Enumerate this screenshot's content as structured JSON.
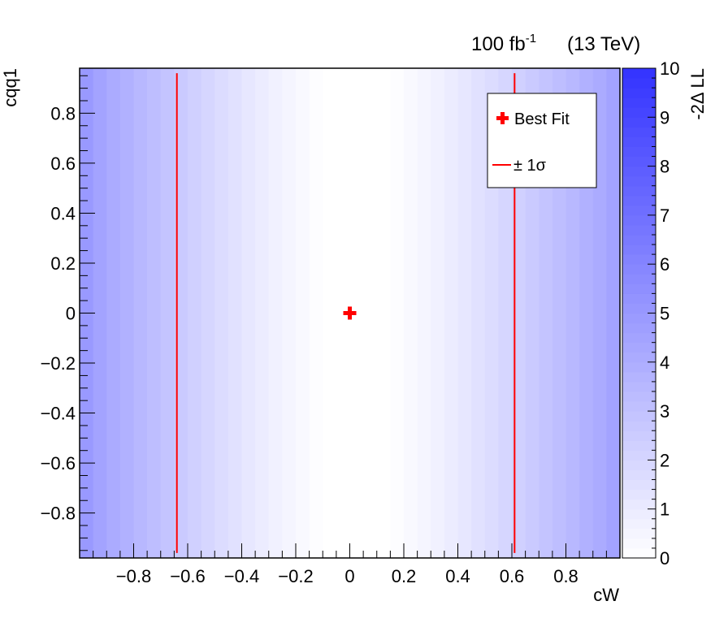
{
  "chart_data": {
    "type": "heatmap",
    "title": "",
    "header_left": "100 fb",
    "header_left_sup": "-1",
    "header_right": "(13 TeV)",
    "xlabel": "cW",
    "ylabel": "cqq1",
    "xlim": [
      -1.0,
      1.0
    ],
    "ylim": [
      -0.98,
      0.98
    ],
    "x_ticks": [
      {
        "value": -0.8,
        "label": "−0.8"
      },
      {
        "value": -0.6,
        "label": "−0.6"
      },
      {
        "value": -0.4,
        "label": "−0.4"
      },
      {
        "value": -0.2,
        "label": "−0.2"
      },
      {
        "value": 0,
        "label": "0"
      },
      {
        "value": 0.2,
        "label": "0.2"
      },
      {
        "value": 0.4,
        "label": "0.4"
      },
      {
        "value": 0.6,
        "label": "0.6"
      },
      {
        "value": 0.8,
        "label": "0.8"
      }
    ],
    "y_ticks": [
      {
        "value": 0.8,
        "label": "0.8"
      },
      {
        "value": 0.6,
        "label": "0.6"
      },
      {
        "value": 0.4,
        "label": "0.4"
      },
      {
        "value": 0.2,
        "label": "0.2"
      },
      {
        "value": 0,
        "label": "0"
      },
      {
        "value": -0.2,
        "label": "−0.2"
      },
      {
        "value": -0.4,
        "label": "−0.4"
      },
      {
        "value": -0.6,
        "label": "−0.6"
      },
      {
        "value": -0.8,
        "label": "−0.8"
      }
    ],
    "colorbar": {
      "label": "-2Δ LL",
      "range": [
        0,
        10
      ],
      "ticks": [
        "0",
        "1",
        "2",
        "3",
        "4",
        "5",
        "6",
        "7",
        "8",
        "9",
        "10"
      ],
      "color_low": "#ffffff",
      "color_high": "#3333ff"
    },
    "heatmap_bins_x": [
      -1.0,
      -0.95,
      -0.9,
      -0.85,
      -0.8,
      -0.75,
      -0.7,
      -0.65,
      -0.6,
      -0.55,
      -0.5,
      -0.45,
      -0.4,
      -0.35,
      -0.3,
      -0.25,
      -0.2,
      -0.15,
      -0.1,
      -0.05,
      0.0,
      0.05,
      0.1,
      0.15,
      0.2,
      0.25,
      0.3,
      0.35,
      0.4,
      0.45,
      0.5,
      0.55,
      0.6,
      0.65,
      0.7,
      0.75,
      0.8,
      0.85,
      0.9,
      0.95,
      1.0
    ],
    "heatmap_values": [
      5.0,
      4.5,
      4.1,
      3.8,
      3.5,
      3.2,
      2.9,
      2.6,
      2.3,
      2.0,
      1.7,
      1.45,
      1.2,
      0.95,
      0.7,
      0.5,
      0.3,
      0.1,
      0.0,
      0.0,
      0.0,
      0.0,
      0.0,
      0.1,
      0.3,
      0.5,
      0.7,
      0.95,
      1.2,
      1.45,
      1.7,
      2.0,
      2.3,
      2.6,
      2.9,
      3.2,
      3.5,
      3.8,
      4.1,
      4.5
    ],
    "best_fit": {
      "x": 0.0,
      "y": 0.0,
      "color": "#ff0000"
    },
    "sigma_lines": {
      "x": [
        -0.64,
        0.61
      ],
      "y_range": [
        -0.96,
        0.96
      ],
      "color": "#ff0000"
    },
    "legend": {
      "placement": "top-right",
      "entries": [
        {
          "label": "Best Fit",
          "marker": "cross",
          "color": "#ff0000"
        },
        {
          "label": "± 1σ",
          "marker": "line",
          "color": "#ff0000"
        }
      ]
    }
  }
}
